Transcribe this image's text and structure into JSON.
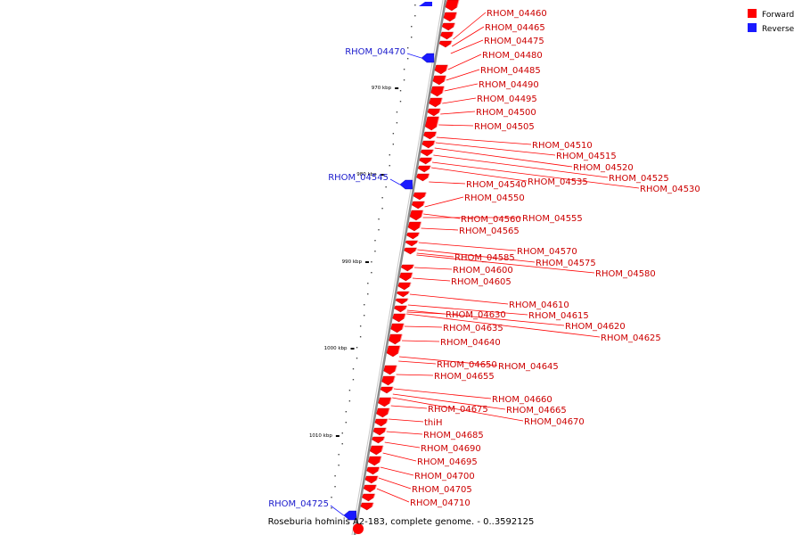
{
  "caption": "Roseburia hominis A2-183, complete genome. - 0..3592125",
  "colors": {
    "forward": "#ff0000",
    "reverse": "#1a1aff",
    "backbone": "#888888"
  },
  "legend": [
    {
      "label": "Forward",
      "strand": "forward"
    },
    {
      "label": "Reverse",
      "strand": "reverse"
    }
  ],
  "scale_ticks": [
    "970 kbp",
    "980 kbp",
    "990 kbp",
    "1000 kbp",
    "1010 kbp"
  ],
  "forward_labels": [
    "RHOM_04460",
    "RHOM_04465",
    "RHOM_04475",
    "RHOM_04480",
    "RHOM_04485",
    "RHOM_04490",
    "RHOM_04495",
    "RHOM_04500",
    "RHOM_04505",
    "RHOM_04510",
    "RHOM_04515",
    "RHOM_04520",
    "RHOM_04525",
    "RHOM_04530",
    "RHOM_04535",
    "RHOM_04540",
    "RHOM_04550",
    "RHOM_04555",
    "RHOM_04560",
    "RHOM_04565",
    "RHOM_04570",
    "RHOM_04575",
    "RHOM_04580",
    "RHOM_04585",
    "RHOM_04600",
    "RHOM_04605",
    "RHOM_04610",
    "RHOM_04615",
    "RHOM_04620",
    "RHOM_04625",
    "RHOM_04630",
    "RHOM_04635",
    "RHOM_04640",
    "RHOM_04645",
    "RHOM_04650",
    "RHOM_04655",
    "RHOM_04660",
    "RHOM_04665",
    "RHOM_04670",
    "RHOM_04675",
    "thiH",
    "RHOM_04685",
    "RHOM_04690",
    "RHOM_04695",
    "RHOM_04700",
    "RHOM_04705",
    "RHOM_04710"
  ],
  "reverse_labels": [
    "RHOM_04470",
    "RHOM_04545",
    "RHOM_04725"
  ]
}
